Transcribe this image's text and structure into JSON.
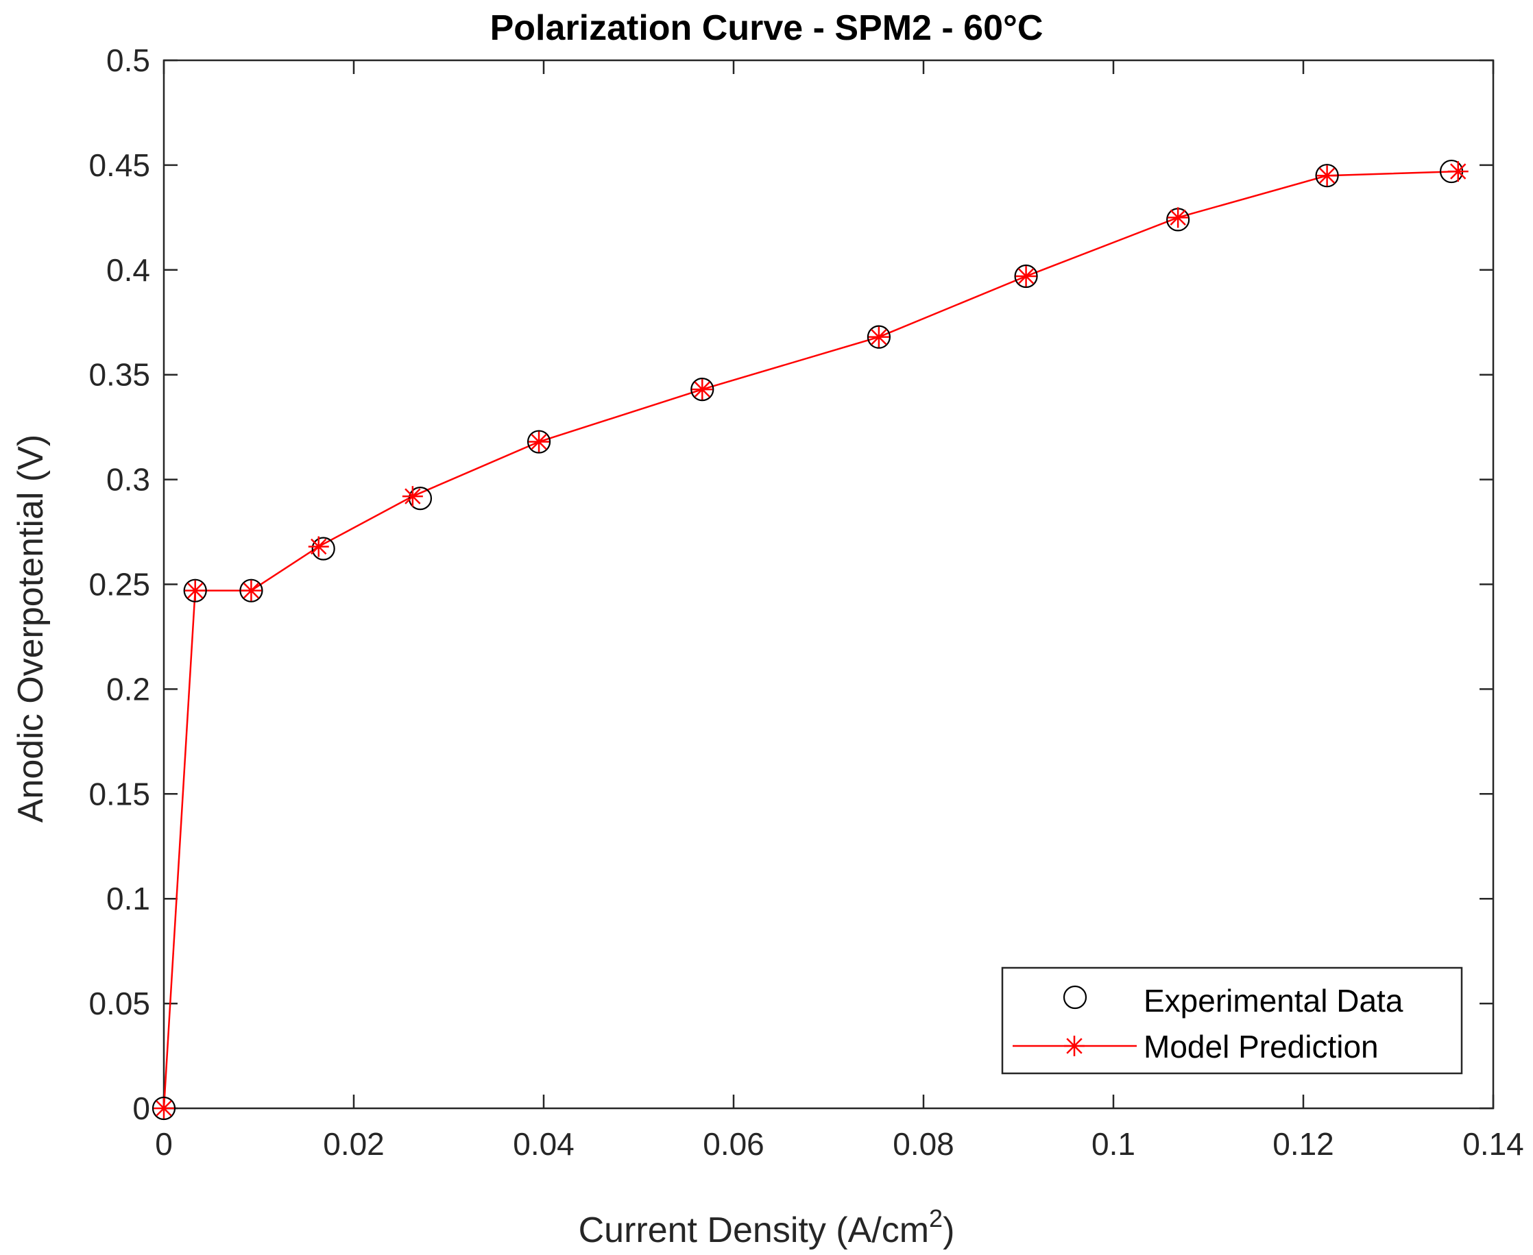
{
  "chart_data": {
    "type": "line",
    "title": "Polarization Curve - SPM2 - 60°C",
    "xlabel": "Current Density (A/cm",
    "xlabel_superscript": "2",
    "xlabel_close": ")",
    "ylabel": "Anodic Overpotential (V)",
    "xlim": [
      0,
      0.14
    ],
    "ylim": [
      0,
      0.5
    ],
    "xticks": [
      0,
      0.02,
      0.04,
      0.06,
      0.08,
      0.1,
      0.12,
      0.14
    ],
    "xtick_labels": [
      "0",
      "0.02",
      "0.04",
      "0.06",
      "0.08",
      "0.1",
      "0.12",
      "0.14"
    ],
    "yticks": [
      0,
      0.05,
      0.1,
      0.15,
      0.2,
      0.25,
      0.3,
      0.35,
      0.4,
      0.45,
      0.5
    ],
    "ytick_labels": [
      "0",
      "0.05",
      "0.1",
      "0.15",
      "0.2",
      "0.25",
      "0.3",
      "0.35",
      "0.4",
      "0.45",
      "0.5"
    ],
    "grid": false,
    "legend_position": "bottom-right",
    "series": [
      {
        "name": "Experimental Data",
        "marker": "circle",
        "line": false,
        "color": "#000000",
        "x": [
          0,
          0.0033,
          0.0092,
          0.0168,
          0.027,
          0.0395,
          0.0567,
          0.0753,
          0.0908,
          0.1068,
          0.1225,
          0.1356
        ],
        "y": [
          0,
          0.247,
          0.247,
          0.267,
          0.291,
          0.318,
          0.343,
          0.368,
          0.397,
          0.424,
          0.445,
          0.447
        ]
      },
      {
        "name": "Model Prediction",
        "marker": "asterisk",
        "line": true,
        "color": "#ff0000",
        "x": [
          0,
          0.0033,
          0.0092,
          0.0163,
          0.0262,
          0.0395,
          0.0567,
          0.0753,
          0.0908,
          0.1068,
          0.1225,
          0.1363
        ],
        "y": [
          0,
          0.247,
          0.247,
          0.268,
          0.292,
          0.318,
          0.343,
          0.368,
          0.397,
          0.425,
          0.445,
          0.447
        ]
      }
    ]
  }
}
